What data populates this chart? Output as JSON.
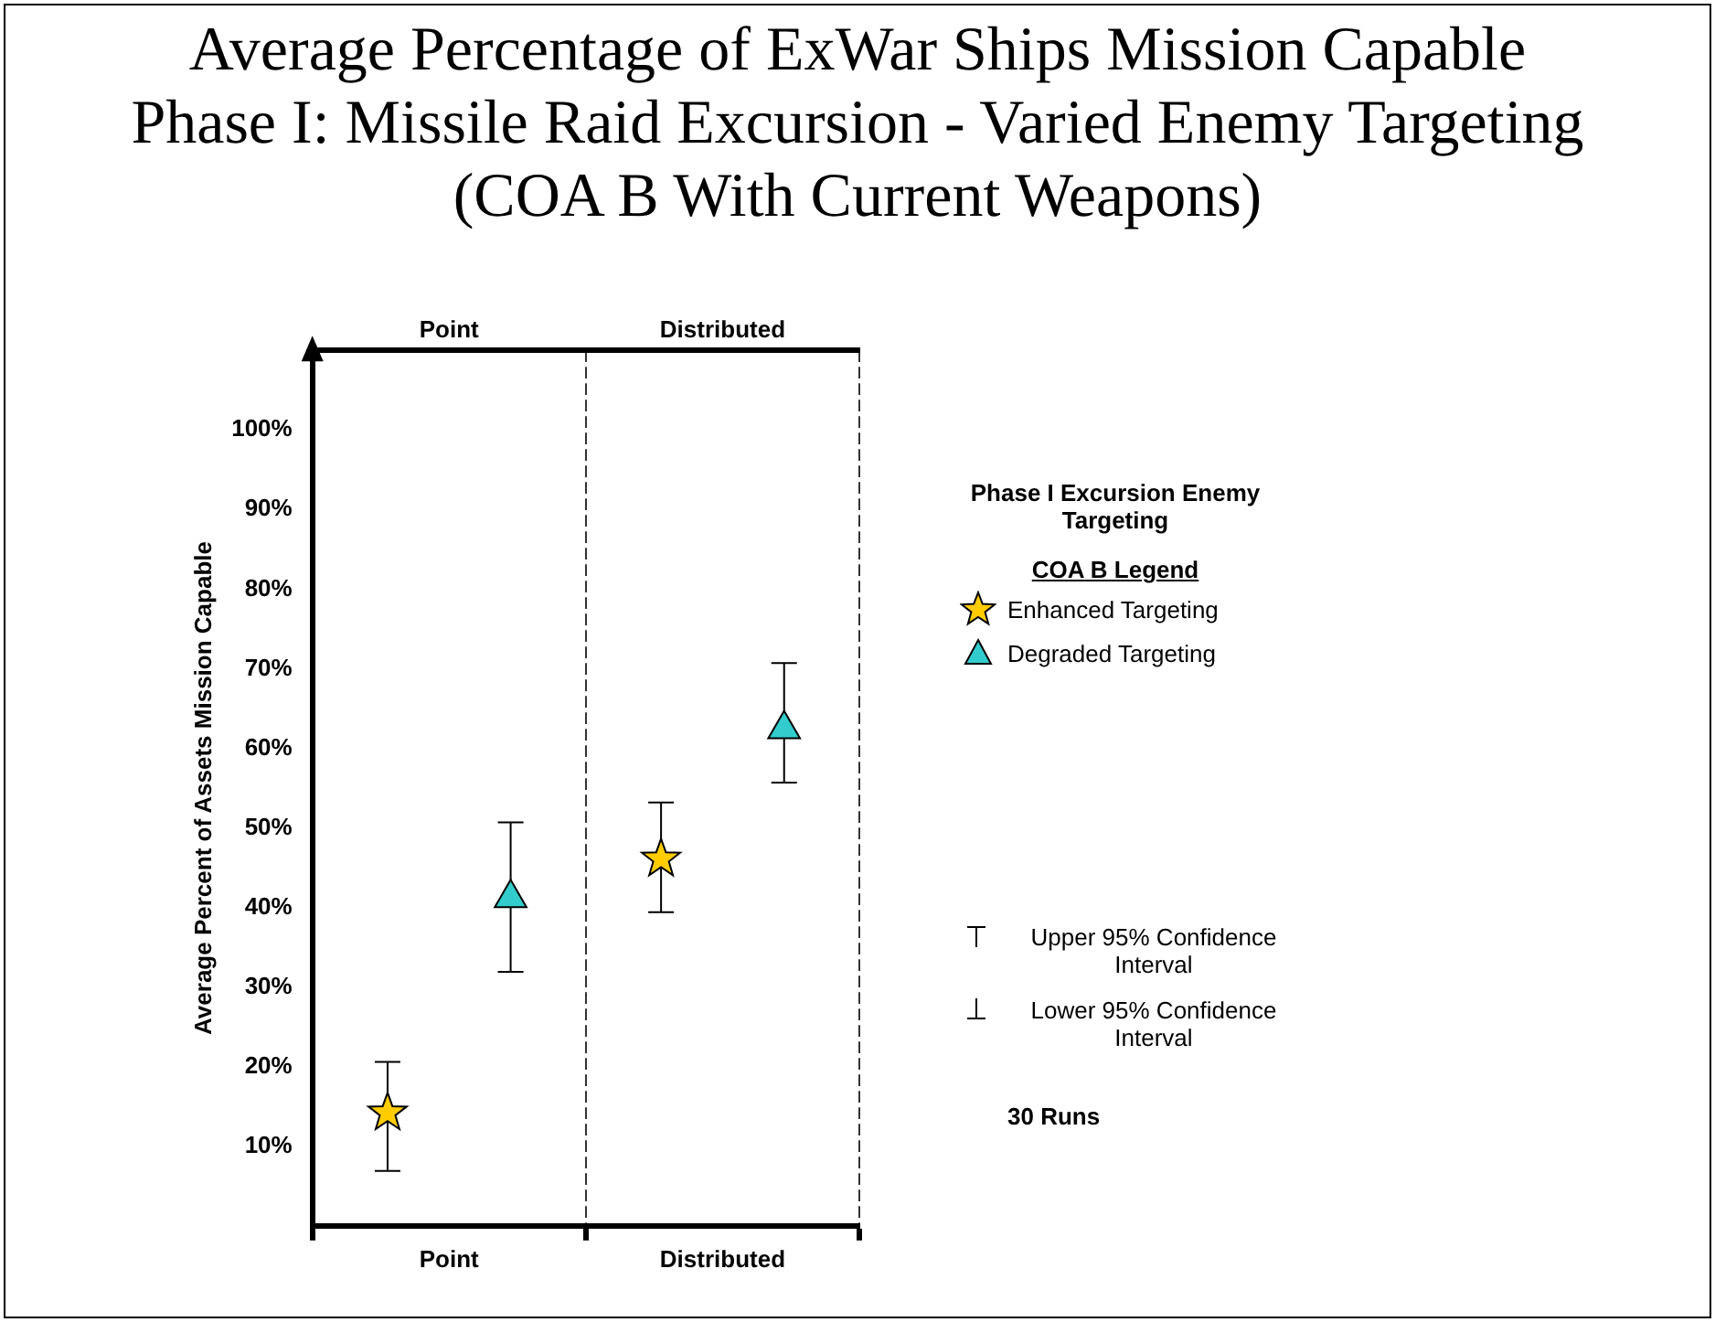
{
  "chart_data": {
    "type": "scatter",
    "title": "Average Percentage of ExWar Ships Mission Capable",
    "subtitle": "Phase I:  Missile Raid Excursion - Varied Enemy Targeting\n(COA B With Current Weapons)",
    "ylabel": "Average Percent of Assets Mission Capable",
    "legend_title": "Phase I Excursion Enemy Targeting",
    "categories": [
      "Point",
      "Distributed"
    ],
    "series": [
      {
        "name": "Enhanced Targeting",
        "color": "#ffcc00",
        "marker": "star",
        "values": [
          14.2,
          46.1
        ],
        "errors": [
          [
            6.9,
            20.6
          ],
          [
            39.4,
            53.2
          ]
        ]
      },
      {
        "name": "Degraded Targeting",
        "color": "#33cccc",
        "marker": "triangle",
        "values": [
          41.2,
          62.4
        ],
        "errors": [
          [
            31.9,
            50.7
          ],
          [
            55.7,
            70.7
          ]
        ]
      }
    ],
    "ylim": [
      0,
      110
    ],
    "yticks": [
      {
        "value": 10,
        "label": "10%"
      },
      {
        "value": 20,
        "label": "20%"
      },
      {
        "value": 30,
        "label": "30%"
      },
      {
        "value": 40,
        "label": "40%"
      },
      {
        "value": 50,
        "label": "50%"
      },
      {
        "value": 60,
        "label": "60%"
      },
      {
        "value": 70,
        "label": "70%"
      },
      {
        "value": 80,
        "label": "80%"
      },
      {
        "value": 90,
        "label": "90%"
      },
      {
        "value": 100,
        "label": "100%"
      }
    ],
    "legend": "right",
    "annotations": [
      "COA B Legend",
      "Upper 95% Confidence Interval",
      "Lower 95% Confidence Interval",
      "30 Runs"
    ]
  }
}
